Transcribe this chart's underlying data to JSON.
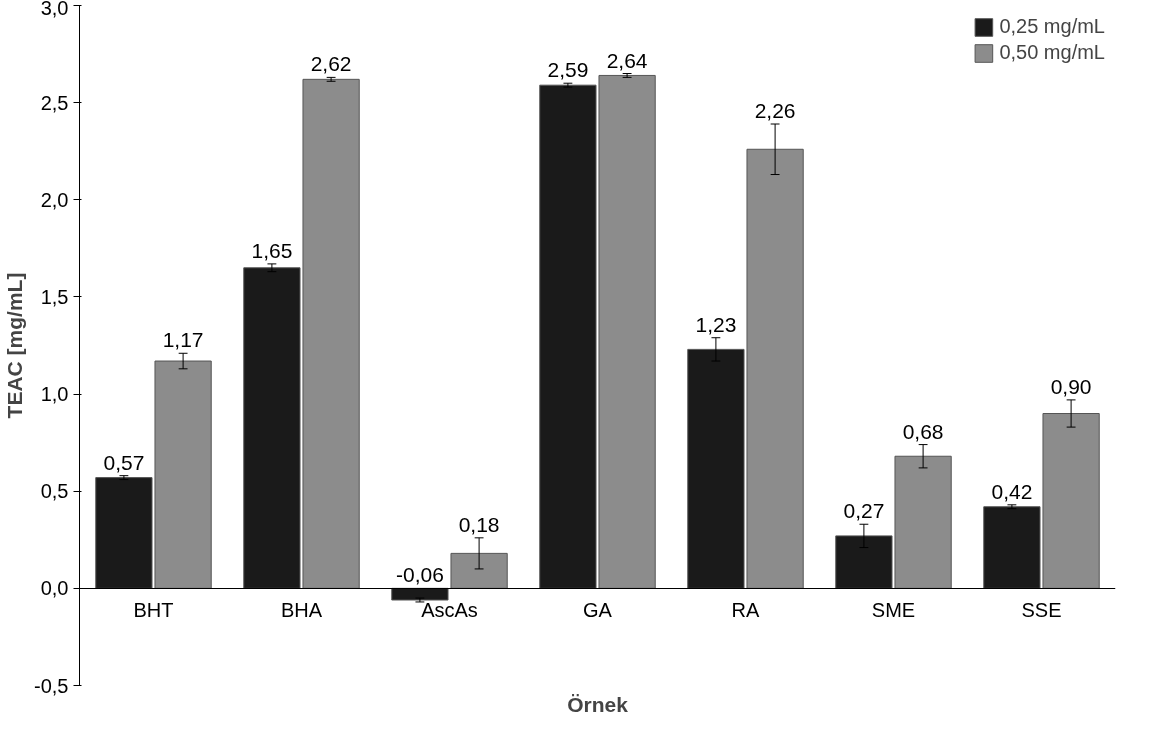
{
  "chart_data": {
    "type": "bar",
    "xlabel": "Örnek",
    "ylabel": "TEAC [mg/mL]",
    "categories": [
      "BHT",
      "BHA",
      "AscAs",
      "GA",
      "RA",
      "SME",
      "SSE"
    ],
    "series": [
      {
        "name": "0,25 mg/mL",
        "color": "#1a1a1a",
        "values": [
          0.57,
          1.65,
          -0.06,
          2.59,
          1.23,
          0.27,
          0.42
        ],
        "errors": [
          0.01,
          0.02,
          0.01,
          0.01,
          0.06,
          0.06,
          0.01
        ],
        "value_labels": [
          "0,57",
          "1,65",
          "-0,06",
          "2,59",
          "1,23",
          "0,27",
          "0,42"
        ]
      },
      {
        "name": "0,50 mg/mL",
        "color": "#8c8c8c",
        "values": [
          1.17,
          2.62,
          0.18,
          2.64,
          2.26,
          0.68,
          0.9
        ],
        "errors": [
          0.04,
          0.01,
          0.08,
          0.01,
          0.13,
          0.06,
          0.07
        ],
        "value_labels": [
          "1,17",
          "2,62",
          "0,18",
          "2,64",
          "2,26",
          "0,68",
          "0,90"
        ]
      }
    ],
    "ylim": [
      -0.5,
      3.0
    ],
    "yticks": [
      {
        "value": -0.5,
        "label": "-0,5"
      },
      {
        "value": 0,
        "label": "0,0"
      },
      {
        "value": 0.5,
        "label": "0,5"
      },
      {
        "value": 1.0,
        "label": "1,0"
      },
      {
        "value": 1.5,
        "label": "1,5"
      },
      {
        "value": 2.0,
        "label": "2,0"
      },
      {
        "value": 2.5,
        "label": "2,5"
      },
      {
        "value": 3.0,
        "label": "3,0"
      }
    ],
    "grid": false,
    "legend": "top right"
  }
}
